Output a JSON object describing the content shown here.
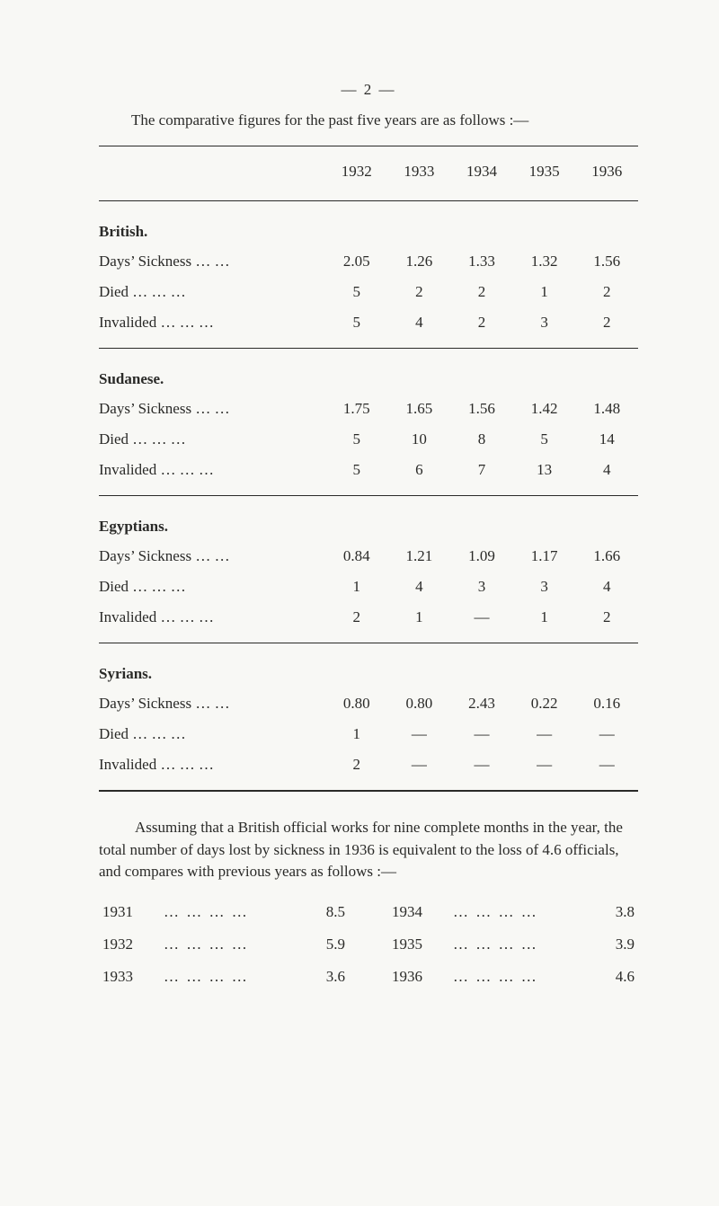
{
  "page_number": "— 2 —",
  "intro": "The comparative figures for the past five years are as follows :—",
  "table": {
    "years": [
      "1932",
      "1933",
      "1934",
      "1935",
      "1936"
    ],
    "sections": [
      {
        "title": "British.",
        "rows": [
          {
            "label": "Days’ Sickness",
            "cells": [
              "2.05",
              "1.26",
              "1.33",
              "1.32",
              "1.56"
            ]
          },
          {
            "label": "Died",
            "cells": [
              "5",
              "2",
              "2",
              "1",
              "2"
            ]
          },
          {
            "label": "Invalided",
            "cells": [
              "5",
              "4",
              "2",
              "3",
              "2"
            ]
          }
        ]
      },
      {
        "title": "Sudanese.",
        "rows": [
          {
            "label": "Days’ Sickness",
            "cells": [
              "1.75",
              "1.65",
              "1.56",
              "1.42",
              "1.48"
            ]
          },
          {
            "label": "Died",
            "cells": [
              "5",
              "10",
              "8",
              "5",
              "14"
            ]
          },
          {
            "label": "Invalided",
            "cells": [
              "5",
              "6",
              "7",
              "13",
              "4"
            ]
          }
        ]
      },
      {
        "title": "Egyptians.",
        "rows": [
          {
            "label": "Days’ Sickness",
            "cells": [
              "0.84",
              "1.21",
              "1.09",
              "1.17",
              "1.66"
            ]
          },
          {
            "label": "Died",
            "cells": [
              "1",
              "4",
              "3",
              "3",
              "4"
            ]
          },
          {
            "label": "Invalided",
            "cells": [
              "2",
              "1",
              "—",
              "1",
              "2"
            ]
          }
        ]
      },
      {
        "title": "Syrians.",
        "rows": [
          {
            "label": "Days’ Sickness",
            "cells": [
              "0.80",
              "0.80",
              "2.43",
              "0.22",
              "0.16"
            ]
          },
          {
            "label": "Died",
            "cells": [
              "1",
              "—",
              "—",
              "—",
              "—"
            ]
          },
          {
            "label": "Invalided",
            "cells": [
              "2",
              "—",
              "—",
              "—",
              "—"
            ]
          }
        ]
      }
    ]
  },
  "assume_text": "Assuming that a British official works for nine complete months in the year, the total number of days lost by sickness in 1936 is equivalent to the loss of 4.6 officials, and compares with previous years as follows :—",
  "years2": [
    {
      "left_year": "1931",
      "left_val": "8.5",
      "right_year": "1934",
      "right_val": "3.8"
    },
    {
      "left_year": "1932",
      "left_val": "5.9",
      "right_year": "1935",
      "right_val": "3.9"
    },
    {
      "left_year": "1933",
      "left_val": "3.6",
      "right_year": "1936",
      "right_val": "4.6"
    }
  ],
  "ellipsis4": "…     …     …     …",
  "ellipsis4b": "…     …     …     …"
}
